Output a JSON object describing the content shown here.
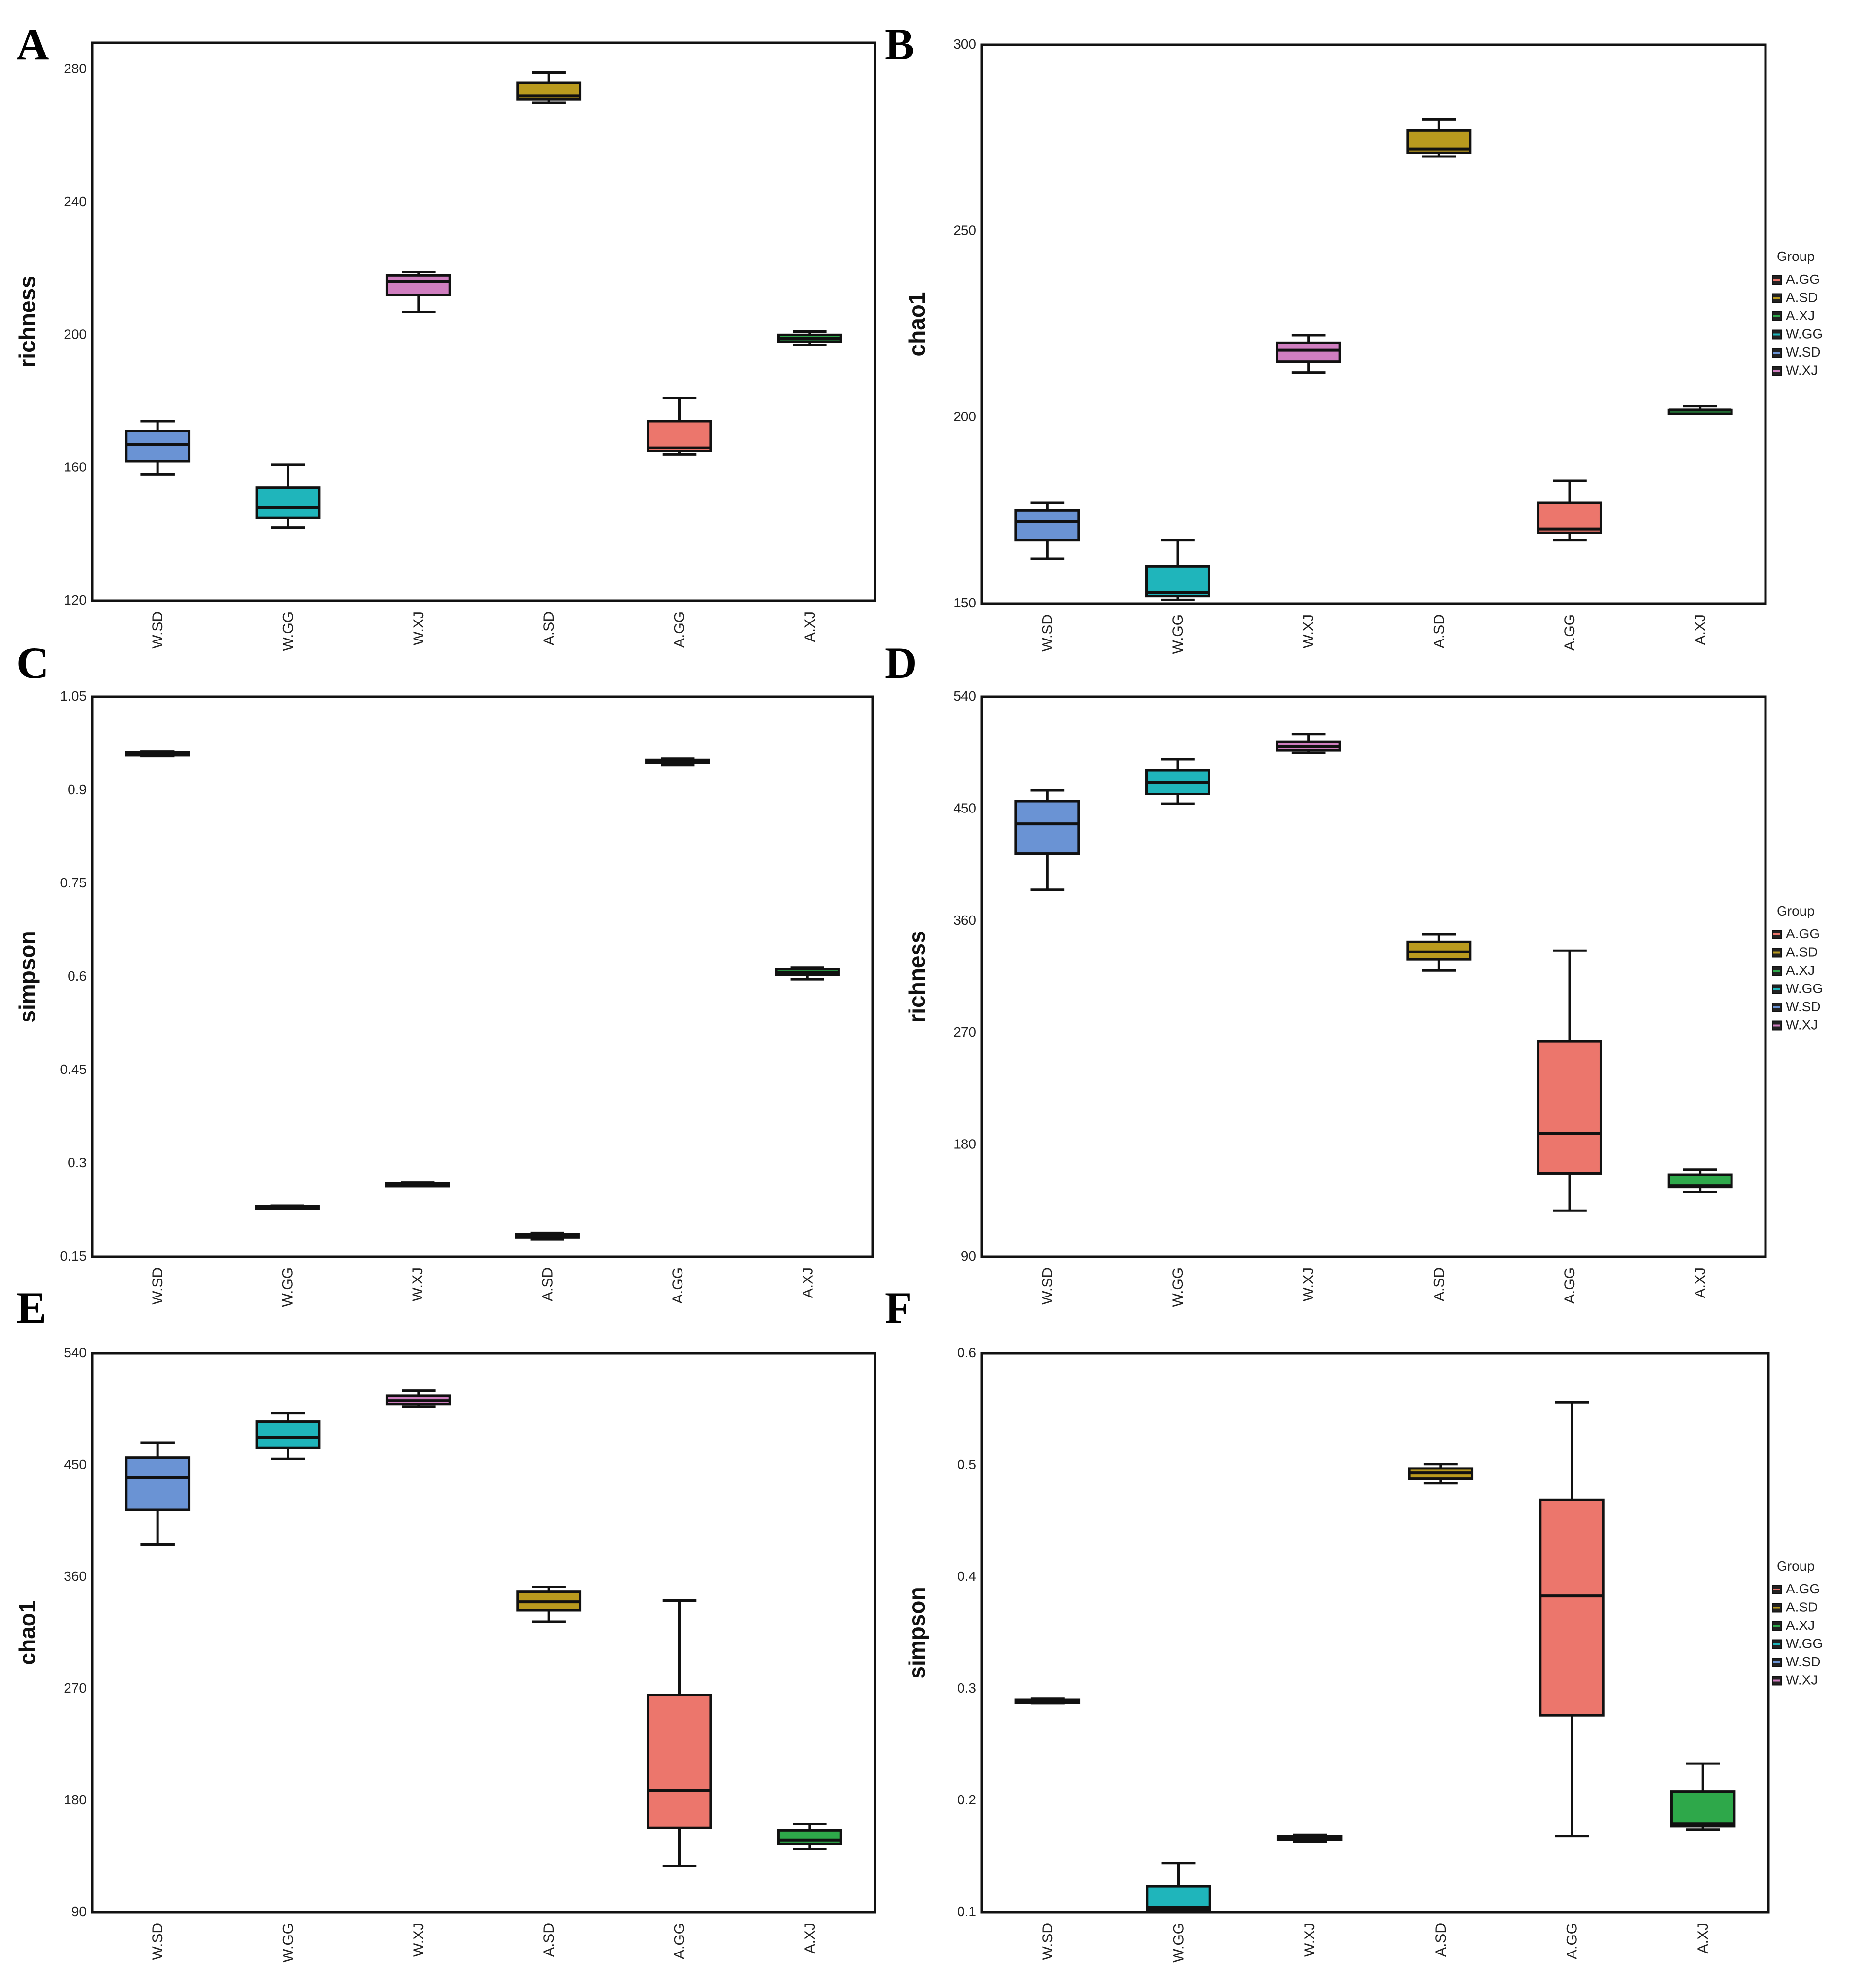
{
  "legend": {
    "title": "Group",
    "items": [
      "A.GG",
      "A.SD",
      "A.XJ",
      "W.GG",
      "W.SD",
      "W.XJ"
    ]
  },
  "colors": {
    "W.SD": "#6a93d4",
    "W.GG": "#1fb5bb",
    "W.XJ": "#d07ec0",
    "A.SD": "#b99a1e",
    "A.GG": "#ec766c",
    "A.XJ": "#2ea84a"
  },
  "chart_data": [
    {
      "panel": "A",
      "type": "box",
      "ylabel": "richness",
      "categories": [
        "W.SD",
        "W.GG",
        "W.XJ",
        "A.SD",
        "A.GG",
        "A.XJ"
      ],
      "ylim": [
        120,
        288
      ],
      "yticks": [
        "120",
        "160",
        "200",
        "240",
        "280"
      ],
      "boxes": [
        {
          "min": 158,
          "q1": 162,
          "median": 167,
          "q3": 171,
          "max": 174
        },
        {
          "min": 142,
          "q1": 145,
          "median": 148,
          "q3": 154,
          "max": 161
        },
        {
          "min": 207,
          "q1": 212,
          "median": 216,
          "q3": 218,
          "max": 219
        },
        {
          "min": 270,
          "q1": 271,
          "median": 272,
          "q3": 276,
          "max": 279
        },
        {
          "min": 164,
          "q1": 165,
          "median": 166,
          "q3": 174,
          "max": 181
        },
        {
          "min": 197,
          "q1": 198,
          "median": 199,
          "q3": 200,
          "max": 201
        }
      ]
    },
    {
      "panel": "B",
      "type": "box",
      "ylabel": "chao1",
      "categories": [
        "W.SD",
        "W.GG",
        "W.XJ",
        "A.SD",
        "A.GG",
        "A.XJ"
      ],
      "ylim": [
        150,
        300
      ],
      "yticks": [
        "150",
        "200",
        "250",
        "300"
      ],
      "boxes": [
        {
          "min": 162,
          "q1": 167,
          "median": 172,
          "q3": 175,
          "max": 177
        },
        {
          "min": 151,
          "q1": 152,
          "median": 153,
          "q3": 160,
          "max": 167
        },
        {
          "min": 212,
          "q1": 215,
          "median": 218,
          "q3": 220,
          "max": 222
        },
        {
          "min": 270,
          "q1": 271,
          "median": 272,
          "q3": 277,
          "max": 280
        },
        {
          "min": 167,
          "q1": 169,
          "median": 170,
          "q3": 177,
          "max": 183
        },
        {
          "min": 201,
          "q1": 201,
          "median": 202,
          "q3": 202,
          "max": 203
        }
      ]
    },
    {
      "panel": "C",
      "type": "box",
      "ylabel": "simpson",
      "categories": [
        "W.SD",
        "W.GG",
        "W.XJ",
        "A.SD",
        "A.GG",
        "A.XJ"
      ],
      "ylim": [
        0.15,
        1.05
      ],
      "yticks": [
        "0.15",
        "0.3",
        "0.45",
        "0.6",
        "0.75",
        "0.9",
        "1.05"
      ],
      "boxes": [
        {
          "min": 0.955,
          "q1": 0.957,
          "median": 0.959,
          "q3": 0.961,
          "max": 0.962
        },
        {
          "min": 0.227,
          "q1": 0.228,
          "median": 0.229,
          "q3": 0.231,
          "max": 0.232
        },
        {
          "min": 0.265,
          "q1": 0.266,
          "median": 0.267,
          "q3": 0.268,
          "max": 0.269
        },
        {
          "min": 0.178,
          "q1": 0.181,
          "median": 0.183,
          "q3": 0.186,
          "max": 0.188
        },
        {
          "min": 0.94,
          "q1": 0.944,
          "median": 0.946,
          "q3": 0.949,
          "max": 0.951
        },
        {
          "min": 0.596,
          "q1": 0.603,
          "median": 0.607,
          "q3": 0.612,
          "max": 0.615
        }
      ]
    },
    {
      "panel": "D",
      "type": "box",
      "ylabel": "richness",
      "categories": [
        "W.SD",
        "W.GG",
        "W.XJ",
        "A.SD",
        "A.GG",
        "A.XJ"
      ],
      "ylim": [
        90,
        540
      ],
      "yticks": [
        "90",
        "180",
        "270",
        "360",
        "450",
        "540"
      ],
      "boxes": [
        {
          "min": 385,
          "q1": 414,
          "median": 438,
          "q3": 456,
          "max": 465
        },
        {
          "min": 454,
          "q1": 462,
          "median": 471,
          "q3": 481,
          "max": 490
        },
        {
          "min": 495,
          "q1": 497,
          "median": 500,
          "q3": 504,
          "max": 510
        },
        {
          "min": 320,
          "q1": 329,
          "median": 335,
          "q3": 343,
          "max": 349
        },
        {
          "min": 127,
          "q1": 157,
          "median": 189,
          "q3": 263,
          "max": 336
        },
        {
          "min": 142,
          "q1": 146,
          "median": 147,
          "q3": 156,
          "max": 160
        }
      ]
    },
    {
      "panel": "E",
      "type": "box",
      "ylabel": "chao1",
      "categories": [
        "W.SD",
        "W.GG",
        "W.XJ",
        "A.SD",
        "A.GG",
        "A.XJ"
      ],
      "ylim": [
        90,
        540
      ],
      "yticks": [
        "90",
        "180",
        "270",
        "360",
        "450",
        "540"
      ],
      "boxes": [
        {
          "min": 386,
          "q1": 414,
          "median": 440,
          "q3": 456,
          "max": 468
        },
        {
          "min": 455,
          "q1": 464,
          "median": 472,
          "q3": 485,
          "max": 492
        },
        {
          "min": 497,
          "q1": 499,
          "median": 502,
          "q3": 506,
          "max": 510
        },
        {
          "min": 324,
          "q1": 333,
          "median": 340,
          "q3": 348,
          "max": 352
        },
        {
          "min": 127,
          "q1": 158,
          "median": 188,
          "q3": 265,
          "max": 341
        },
        {
          "min": 141,
          "q1": 145,
          "median": 148,
          "q3": 156,
          "max": 161
        }
      ]
    },
    {
      "panel": "F",
      "type": "box",
      "ylabel": "simpson",
      "categories": [
        "W.SD",
        "W.GG",
        "W.XJ",
        "A.SD",
        "A.GG",
        "A.XJ"
      ],
      "ylim": [
        0.1,
        0.6
      ],
      "yticks": [
        "0.1",
        "0.2",
        "0.3",
        "0.4",
        "0.5",
        "0.6"
      ],
      "boxes": [
        {
          "min": 0.287,
          "q1": 0.288,
          "median": 0.289,
          "q3": 0.29,
          "max": 0.291
        },
        {
          "min": 0.101,
          "q1": 0.102,
          "median": 0.104,
          "q3": 0.123,
          "max": 0.144
        },
        {
          "min": 0.163,
          "q1": 0.165,
          "median": 0.166,
          "q3": 0.168,
          "max": 0.169
        },
        {
          "min": 0.484,
          "q1": 0.488,
          "median": 0.493,
          "q3": 0.497,
          "max": 0.501
        },
        {
          "min": 0.168,
          "q1": 0.276,
          "median": 0.383,
          "q3": 0.469,
          "max": 0.556
        },
        {
          "min": 0.174,
          "q1": 0.177,
          "median": 0.179,
          "q3": 0.208,
          "max": 0.233
        }
      ]
    }
  ]
}
